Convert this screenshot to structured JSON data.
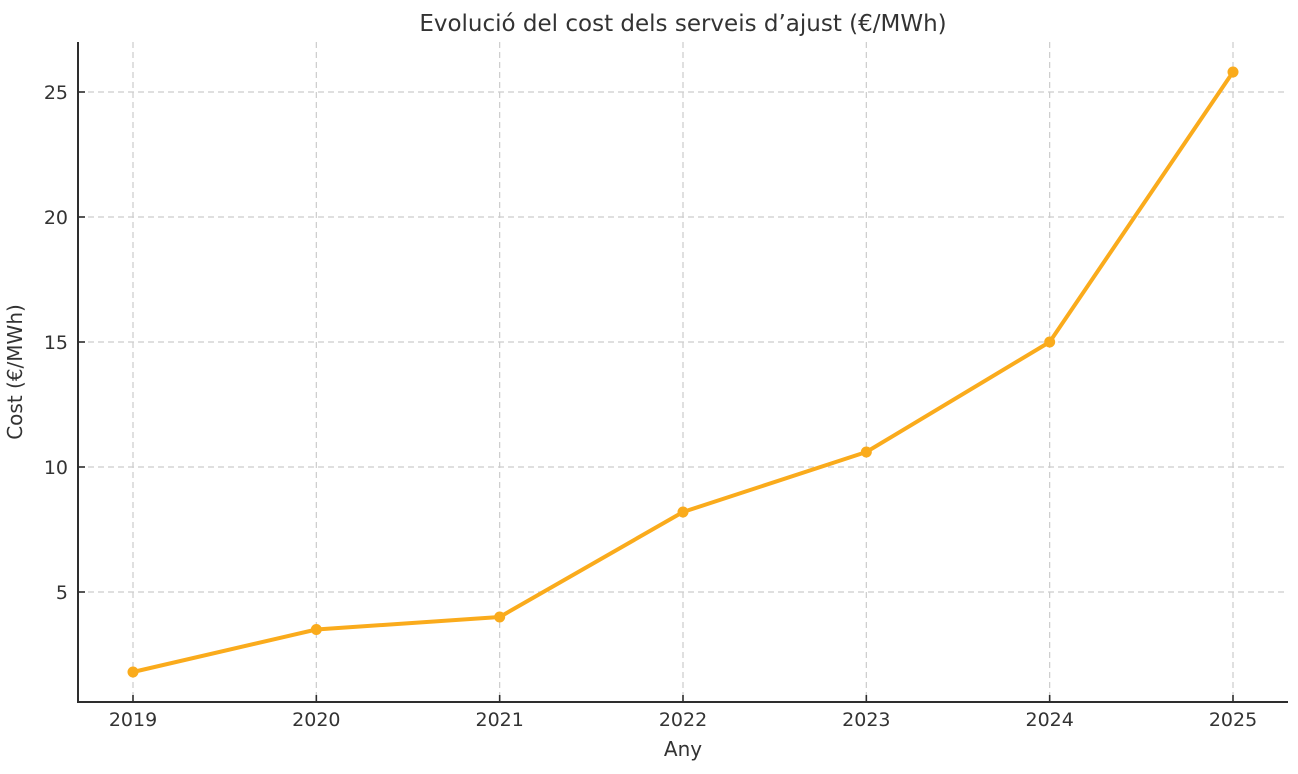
{
  "chart_data": {
    "type": "line",
    "title": "Evolució del cost dels serveis d’ajust (€/MWh)",
    "xlabel": "Any",
    "ylabel": "Cost (€/MWh)",
    "x": [
      2019,
      2020,
      2021,
      2022,
      2023,
      2024,
      2025
    ],
    "values": [
      1.8,
      3.5,
      4.0,
      8.2,
      10.6,
      15.0,
      25.8
    ],
    "xticks": [
      2019,
      2020,
      2021,
      2022,
      2023,
      2024,
      2025
    ],
    "yticks": [
      5,
      10,
      15,
      20,
      25
    ],
    "xlim": [
      2018.7,
      2025.3
    ],
    "ylim": [
      0.6,
      27.0
    ],
    "grid": true,
    "grid_style": "dashed",
    "legend": "none",
    "marker": "circle",
    "colors": {
      "line": "#FAAB1C",
      "marker": "#FAAB1C",
      "grid": "#CCCCCC",
      "axis": "#2E2E2E",
      "text": "#333333",
      "background": "#FFFFFF"
    }
  }
}
